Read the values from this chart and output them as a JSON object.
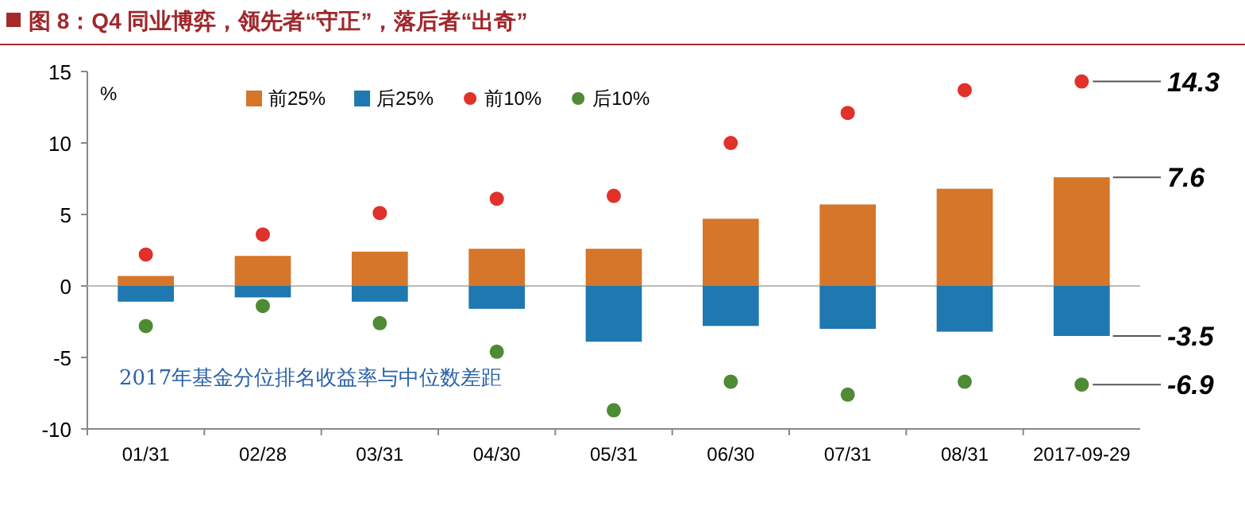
{
  "chart_data": {
    "type": "bar",
    "title": "图 8：Q4 同业博弈，领先者“守正”，落后者“出奇”",
    "ylabel": "%",
    "categories": [
      "01/31",
      "02/28",
      "03/31",
      "04/30",
      "05/31",
      "06/30",
      "07/31",
      "08/31",
      "2017-09-29"
    ],
    "stacked": true,
    "series": [
      {
        "name": "前25%",
        "color": "#d5762a",
        "values": [
          0.7,
          2.1,
          2.4,
          2.6,
          2.6,
          4.7,
          5.7,
          6.8,
          7.6
        ],
        "value_labels": [
          null,
          null,
          null,
          null,
          null,
          null,
          null,
          null,
          "7.6"
        ]
      },
      {
        "name": "后25%",
        "color": "#1f78b0",
        "values": [
          -1.1,
          -0.8,
          -1.1,
          -1.6,
          -3.9,
          -2.8,
          -3.0,
          -3.2,
          -3.5
        ],
        "value_labels": [
          null,
          null,
          null,
          null,
          null,
          null,
          null,
          null,
          "-3.5"
        ]
      },
      {
        "name": "前10%",
        "type": "scatter",
        "color": "#e0312a",
        "values": [
          2.2,
          3.6,
          5.1,
          6.1,
          6.3,
          10.0,
          12.1,
          13.7,
          14.3
        ],
        "value_labels": [
          null,
          null,
          null,
          null,
          null,
          null,
          null,
          null,
          "14.3"
        ]
      },
      {
        "name": "后10%",
        "type": "scatter",
        "color": "#4f8a34",
        "values": [
          -2.8,
          -1.4,
          -2.6,
          -4.6,
          -8.7,
          -6.7,
          -7.6,
          -6.7,
          -6.9
        ],
        "value_labels": [
          null,
          null,
          null,
          null,
          null,
          null,
          null,
          null,
          "-6.9"
        ]
      }
    ],
    "marker": "circle",
    "ylim": [
      -10,
      15
    ],
    "yticks": [
      -10,
      -5,
      0,
      5,
      10,
      15
    ],
    "legend": "top",
    "annotations": [
      {
        "text": "2017年基金分位排名收益率与中位数差距"
      }
    ]
  }
}
